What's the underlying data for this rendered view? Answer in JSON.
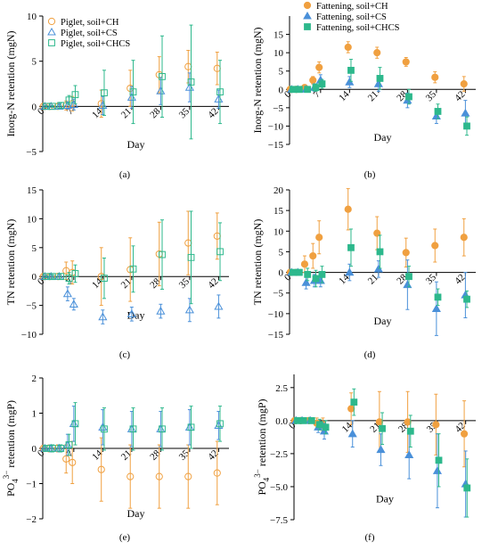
{
  "colors": {
    "CH": "#F0A040",
    "CS": "#4A90D9",
    "CHCS": "#2DB88C"
  },
  "chart_data": [
    {
      "id": "a",
      "panel_label": "(a)",
      "type": "scatter",
      "ylabel": "Inorg-N retention (mgN)",
      "xlabel": "Day",
      "ylim": [
        -5,
        10
      ],
      "yticks": [
        -5,
        0,
        5,
        10
      ],
      "xticks": [
        0,
        7,
        14,
        21,
        28,
        35,
        42
      ],
      "marker": "open",
      "legend": "top-left",
      "series": [
        {
          "name": "Piglet, soil+CH",
          "key": "CH",
          "shape": "circle",
          "x": [
            0,
            1.5,
            3.5,
            5.5,
            7,
            14,
            21,
            28,
            35,
            42
          ],
          "y": [
            0,
            0,
            0,
            0.1,
            0.3,
            0.3,
            2.0,
            3.5,
            4.4,
            4.2
          ],
          "err": [
            0.1,
            0.1,
            0.3,
            0.5,
            0.8,
            1.5,
            2.0,
            2.0,
            1.8,
            1.8
          ]
        },
        {
          "name": "Piglet, soil+CS",
          "key": "CS",
          "shape": "triangle",
          "x": [
            0,
            1.5,
            3.5,
            5.5,
            7,
            14,
            21,
            28,
            35,
            42
          ],
          "y": [
            0,
            0,
            0,
            0.1,
            0.2,
            0.1,
            1.0,
            1.7,
            2.1,
            0.8
          ],
          "err": [
            0.1,
            0.1,
            0.2,
            0.4,
            0.6,
            1.0,
            1.2,
            1.5,
            1.6,
            1.0
          ]
        },
        {
          "name": "Piglet, soil+CHCS",
          "key": "CHCS",
          "shape": "square",
          "x": [
            0,
            1.5,
            3.5,
            5.5,
            7,
            14,
            21,
            28,
            35,
            42
          ],
          "y": [
            0,
            0,
            0.1,
            0.7,
            1.3,
            1.5,
            1.6,
            3.3,
            2.7,
            1.6
          ],
          "err": [
            0.1,
            0.1,
            0.3,
            0.5,
            1.0,
            2.5,
            3.5,
            4.5,
            6.3,
            3.5
          ]
        }
      ]
    },
    {
      "id": "b",
      "panel_label": "(b)",
      "type": "scatter",
      "ylabel": "Inorg-N retention (mgN)",
      "xlabel": "Day",
      "ylim": [
        -15,
        20
      ],
      "yticks": [
        -15,
        -10,
        -5,
        0,
        5,
        10,
        15
      ],
      "xticks": [
        0,
        7,
        14,
        21,
        28,
        35,
        42
      ],
      "marker": "filled",
      "legend": "top-right",
      "series": [
        {
          "name": "Fattening, soil+CH",
          "key": "CH",
          "shape": "circle",
          "x": [
            0,
            1.5,
            3.5,
            5.5,
            7,
            14,
            21,
            28,
            35,
            42
          ],
          "y": [
            0,
            0,
            0.5,
            2.5,
            6.0,
            11.5,
            10.0,
            7.5,
            3.3,
            1.5
          ],
          "err": [
            0.2,
            0.3,
            0.5,
            1.0,
            1.5,
            1.5,
            1.5,
            1.2,
            1.5,
            2.0
          ]
        },
        {
          "name": "Fattening, soil+CS",
          "key": "CS",
          "shape": "triangle",
          "x": [
            0,
            1.5,
            3.5,
            5.5,
            7,
            14,
            21,
            28,
            35,
            42
          ],
          "y": [
            0,
            0,
            0,
            0.5,
            2.5,
            2.0,
            1.5,
            -3.0,
            -7.3,
            -6.5
          ],
          "err": [
            0.2,
            0.3,
            0.5,
            1.0,
            1.5,
            1.5,
            2.0,
            2.0,
            2.0,
            3.5
          ]
        },
        {
          "name": "Fattening, soil+CHCS",
          "key": "CHCS",
          "shape": "square",
          "x": [
            0,
            1.5,
            3.5,
            5.5,
            7,
            14,
            21,
            28,
            35,
            42
          ],
          "y": [
            0,
            0,
            0,
            0.5,
            1.5,
            5.2,
            3.0,
            -2.0,
            -6.0,
            -10.0
          ],
          "err": [
            0.2,
            0.3,
            0.5,
            1.0,
            1.2,
            3.0,
            3.0,
            2.0,
            2.0,
            2.5
          ]
        }
      ]
    },
    {
      "id": "c",
      "panel_label": "(c)",
      "type": "scatter",
      "ylabel": "TN retention (mgN)",
      "xlabel": "Day",
      "ylim": [
        -10,
        15
      ],
      "yticks": [
        -10,
        -5,
        0,
        5,
        10,
        15
      ],
      "xticks": [
        0,
        7,
        14,
        21,
        28,
        35,
        42
      ],
      "marker": "open",
      "legend": "",
      "series": [
        {
          "name": "Piglet, soil+CH",
          "key": "CH",
          "shape": "circle",
          "x": [
            0,
            1.5,
            3.5,
            5.5,
            7,
            14,
            21,
            28,
            35,
            42
          ],
          "y": [
            0,
            0,
            0,
            1.0,
            0.7,
            0,
            1.2,
            3.9,
            5.8,
            7.0
          ],
          "err": [
            0.2,
            0.3,
            0.5,
            1.5,
            2.0,
            5.0,
            5.5,
            5.5,
            5.5,
            4.0
          ]
        },
        {
          "name": "Piglet, soil+CS",
          "key": "CS",
          "shape": "triangle",
          "x": [
            0,
            1.5,
            3.5,
            5.5,
            7,
            14,
            21,
            28,
            35,
            42
          ],
          "y": [
            0,
            0,
            0,
            -3.0,
            -4.8,
            -7.0,
            -6.5,
            -6.0,
            -5.8,
            -5.2
          ],
          "err": [
            0.2,
            0.3,
            0.5,
            1.2,
            1.0,
            1.2,
            1.2,
            1.2,
            2.0,
            2.0
          ]
        },
        {
          "name": "Piglet, soil+CHCS",
          "key": "CHCS",
          "shape": "square",
          "x": [
            0,
            1.5,
            3.5,
            5.5,
            7,
            14,
            21,
            28,
            35,
            42
          ],
          "y": [
            0,
            0,
            0,
            -0.3,
            0.5,
            -0.3,
            1.3,
            3.8,
            3.3,
            4.3
          ],
          "err": [
            0.2,
            0.3,
            0.5,
            1.0,
            1.5,
            3.5,
            4.0,
            6.0,
            8.0,
            5.0
          ]
        }
      ]
    },
    {
      "id": "d",
      "panel_label": "(d)",
      "type": "scatter",
      "ylabel": "TN retention (mgN)",
      "xlabel": "Day",
      "ylim": [
        -15,
        20
      ],
      "yticks": [
        -15,
        -10,
        -5,
        0,
        5,
        10,
        15,
        20
      ],
      "xticks": [
        0,
        7,
        14,
        21,
        28,
        35,
        42
      ],
      "marker": "filled",
      "legend": "",
      "series": [
        {
          "name": "Fattening, soil+CH",
          "key": "CH",
          "shape": "circle",
          "x": [
            0,
            1.5,
            3.5,
            5.5,
            7,
            14,
            21,
            28,
            35,
            42
          ],
          "y": [
            0,
            0,
            2.0,
            4.0,
            8.5,
            15.3,
            9.5,
            4.8,
            6.5,
            8.5
          ],
          "err": [
            0.3,
            0.5,
            2.0,
            3.0,
            4.0,
            5.0,
            4.0,
            3.5,
            4.0,
            4.5
          ]
        },
        {
          "name": "Fattening, soil+CS",
          "key": "CS",
          "shape": "triangle",
          "x": [
            0,
            1.5,
            3.5,
            5.5,
            7,
            14,
            21,
            28,
            35,
            42
          ],
          "y": [
            0,
            0,
            -2.5,
            -2.0,
            -2.0,
            0,
            0.8,
            -3.0,
            -8.8,
            -5.5
          ],
          "err": [
            0.3,
            0.5,
            1.5,
            1.5,
            1.5,
            2.0,
            2.0,
            6.0,
            6.5,
            5.5
          ]
        },
        {
          "name": "Fattening, soil+CHCS",
          "key": "CHCS",
          "shape": "square",
          "x": [
            0,
            1.5,
            3.5,
            5.5,
            7,
            14,
            21,
            28,
            35,
            42
          ],
          "y": [
            0,
            0,
            -0.5,
            -1.5,
            -0.5,
            6.0,
            5.0,
            -1.0,
            -6.0,
            -6.5
          ],
          "err": [
            0.3,
            0.5,
            1.5,
            2.0,
            2.0,
            4.5,
            4.0,
            2.5,
            2.0,
            2.0
          ]
        }
      ]
    },
    {
      "id": "e",
      "panel_label": "(e)",
      "type": "scatter",
      "ylabel": "PO43− retention (mgP)",
      "ylabel_main": "PO",
      "ylabel_sub": "4",
      "ylabel_sup": "3−",
      "ylabel_tail": " retention (mgP)",
      "xlabel": "Day",
      "ylim": [
        -2,
        2
      ],
      "yticks": [
        -2,
        -1,
        0,
        1,
        2
      ],
      "xticks": [
        0,
        7,
        14,
        21,
        28,
        35,
        42
      ],
      "marker": "open",
      "legend": "",
      "series": [
        {
          "name": "Piglet, soil+CH",
          "key": "CH",
          "shape": "circle",
          "x": [
            0,
            1.5,
            3.5,
            5.5,
            7,
            14,
            21,
            28,
            35,
            42
          ],
          "y": [
            0,
            0,
            0,
            -0.3,
            -0.4,
            -0.6,
            -0.8,
            -0.8,
            -0.8,
            -0.7
          ],
          "err": [
            0.05,
            0.1,
            0.1,
            0.4,
            0.6,
            0.9,
            0.9,
            0.9,
            0.9,
            0.9
          ]
        },
        {
          "name": "Piglet, soil+CS",
          "key": "CS",
          "shape": "triangle",
          "x": [
            0,
            1.5,
            3.5,
            5.5,
            7,
            14,
            21,
            28,
            35,
            42
          ],
          "y": [
            0,
            0,
            0,
            0.1,
            0.7,
            0.6,
            0.55,
            0.55,
            0.6,
            0.65
          ],
          "err": [
            0.05,
            0.1,
            0.1,
            0.3,
            0.5,
            0.5,
            0.5,
            0.5,
            0.5,
            0.4
          ]
        },
        {
          "name": "Piglet, soil+CHCS",
          "key": "CHCS",
          "shape": "square",
          "x": [
            0,
            1.5,
            3.5,
            5.5,
            7,
            14,
            21,
            28,
            35,
            42
          ],
          "y": [
            0,
            0,
            0,
            0.1,
            0.7,
            0.55,
            0.55,
            0.55,
            0.6,
            0.7
          ],
          "err": [
            0.05,
            0.1,
            0.1,
            0.3,
            0.6,
            0.6,
            0.6,
            0.6,
            0.6,
            0.5
          ]
        }
      ]
    },
    {
      "id": "f",
      "panel_label": "(f)",
      "type": "scatter",
      "ylabel": "PO43− retention (mgP)",
      "ylabel_main": "PO",
      "ylabel_sub": "4",
      "ylabel_sup": "3−",
      "ylabel_tail": " retention (mgP)",
      "xlabel": "Day",
      "ylim": [
        -7.5,
        3.5
      ],
      "yticks": [
        -7.5,
        -5.0,
        -2.5,
        0.0,
        2.5
      ],
      "ytick_labels": [
        "−7.5",
        "−5.0",
        "−2.5",
        "0.0",
        "2.5"
      ],
      "xticks": [
        0,
        7,
        14,
        21,
        28,
        35,
        42
      ],
      "marker": "filled",
      "legend": "",
      "series": [
        {
          "name": "Fattening, soil+CH",
          "key": "CH",
          "shape": "circle",
          "x": [
            0,
            1.5,
            3.5,
            5.5,
            7,
            14,
            21,
            28,
            35,
            42
          ],
          "y": [
            0,
            0,
            0,
            -0.2,
            -0.3,
            0.9,
            -0.1,
            -0.1,
            -0.3,
            -1.0
          ],
          "err": [
            0.1,
            0.1,
            0.2,
            0.4,
            0.5,
            1.2,
            2.3,
            2.3,
            2.3,
            2.5
          ]
        },
        {
          "name": "Fattening, soil+CS",
          "key": "CS",
          "shape": "triangle",
          "x": [
            0,
            1.5,
            3.5,
            5.5,
            7,
            14,
            21,
            28,
            35,
            42
          ],
          "y": [
            0,
            0,
            0,
            -0.5,
            -0.8,
            -1.0,
            -2.2,
            -2.6,
            -3.8,
            -4.8
          ],
          "err": [
            0.1,
            0.1,
            0.2,
            0.4,
            0.6,
            1.0,
            1.2,
            1.8,
            2.8,
            2.5
          ]
        },
        {
          "name": "Fattening, soil+CHCS",
          "key": "CHCS",
          "shape": "square",
          "x": [
            0,
            1.5,
            3.5,
            5.5,
            7,
            14,
            21,
            28,
            35,
            42
          ],
          "y": [
            0,
            0,
            0,
            -0.3,
            -0.5,
            1.4,
            -0.6,
            -0.8,
            -3.0,
            -5.1
          ],
          "err": [
            0.1,
            0.1,
            0.2,
            0.4,
            0.5,
            1.0,
            1.2,
            1.2,
            2.0,
            2.2
          ]
        }
      ]
    }
  ]
}
